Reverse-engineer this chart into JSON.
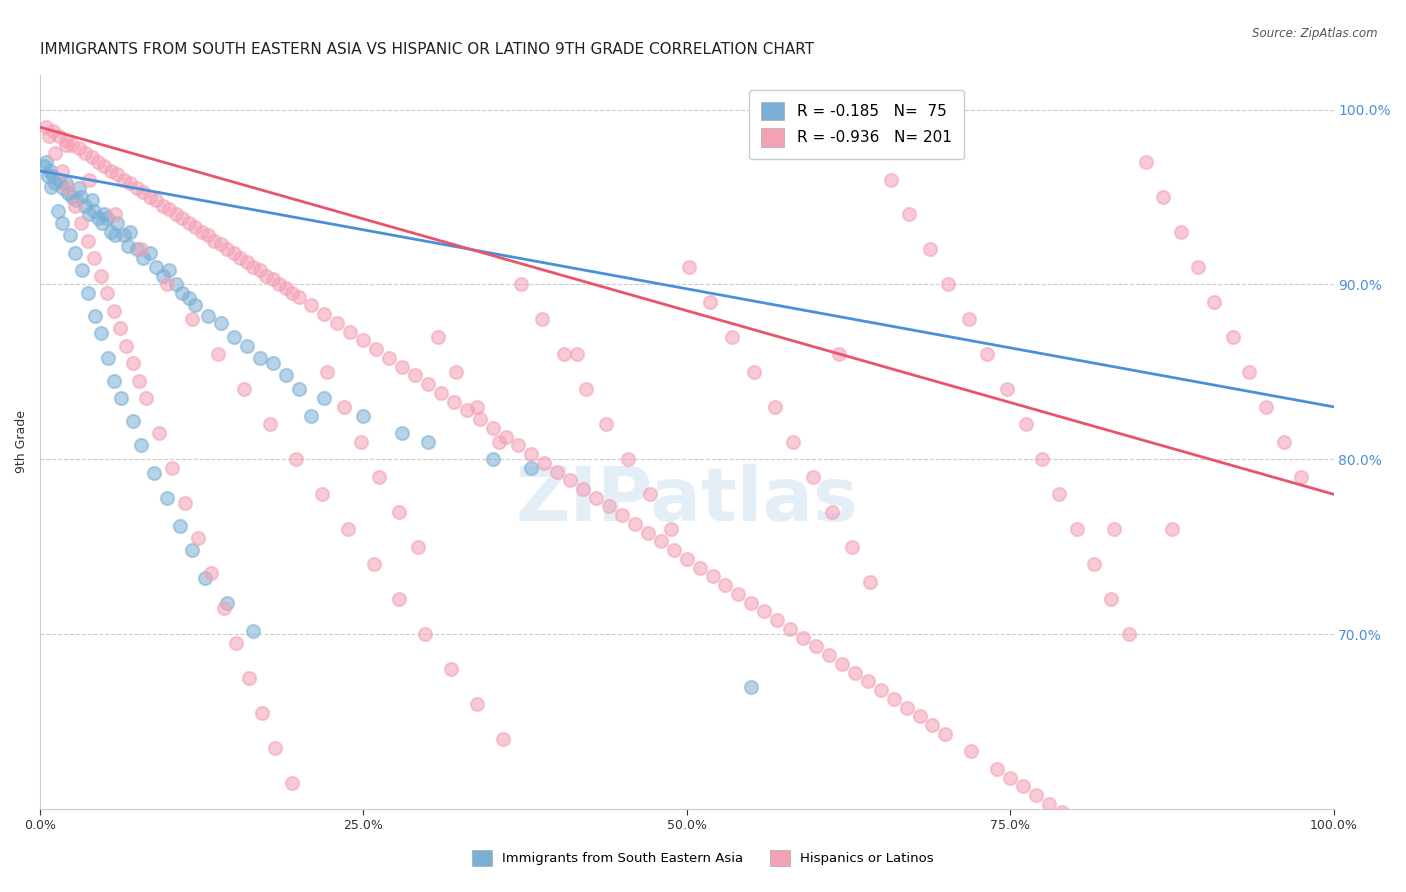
{
  "title": "IMMIGRANTS FROM SOUTH EASTERN ASIA VS HISPANIC OR LATINO 9TH GRADE CORRELATION CHART",
  "source": "Source: ZipAtlas.com",
  "ylabel": "9th Grade",
  "ytick_labels": [
    "70.0%",
    "80.0%",
    "90.0%",
    "100.0%"
  ],
  "ytick_positions": [
    0.7,
    0.8,
    0.9,
    1.0
  ],
  "blue_color": "#7bafd4",
  "pink_color": "#f4a0b5",
  "blue_line_color": "#4a90d9",
  "pink_line_color": "#e8546a",
  "watermark": "ZIPatlas",
  "blue_scatter_x": [
    0.005,
    0.008,
    0.01,
    0.012,
    0.015,
    0.018,
    0.02,
    0.022,
    0.025,
    0.028,
    0.03,
    0.032,
    0.035,
    0.038,
    0.04,
    0.042,
    0.045,
    0.048,
    0.05,
    0.052,
    0.055,
    0.058,
    0.06,
    0.065,
    0.068,
    0.07,
    0.075,
    0.08,
    0.085,
    0.09,
    0.095,
    0.1,
    0.105,
    0.11,
    0.115,
    0.12,
    0.13,
    0.14,
    0.15,
    0.16,
    0.17,
    0.18,
    0.19,
    0.2,
    0.22,
    0.25,
    0.28,
    0.3,
    0.35,
    0.38,
    0.003,
    0.006,
    0.009,
    0.014,
    0.017,
    0.023,
    0.027,
    0.033,
    0.037,
    0.043,
    0.047,
    0.053,
    0.057,
    0.063,
    0.072,
    0.078,
    0.088,
    0.098,
    0.108,
    0.118,
    0.128,
    0.145,
    0.165,
    0.21,
    0.55
  ],
  "blue_scatter_y": [
    0.97,
    0.965,
    0.962,
    0.958,
    0.96,
    0.955,
    0.958,
    0.952,
    0.95,
    0.948,
    0.955,
    0.95,
    0.945,
    0.94,
    0.948,
    0.942,
    0.938,
    0.935,
    0.94,
    0.938,
    0.93,
    0.928,
    0.935,
    0.928,
    0.922,
    0.93,
    0.92,
    0.915,
    0.918,
    0.91,
    0.905,
    0.908,
    0.9,
    0.895,
    0.892,
    0.888,
    0.882,
    0.878,
    0.87,
    0.865,
    0.858,
    0.855,
    0.848,
    0.84,
    0.835,
    0.825,
    0.815,
    0.81,
    0.8,
    0.795,
    0.968,
    0.962,
    0.956,
    0.942,
    0.935,
    0.928,
    0.918,
    0.908,
    0.895,
    0.882,
    0.872,
    0.858,
    0.845,
    0.835,
    0.822,
    0.808,
    0.792,
    0.778,
    0.762,
    0.748,
    0.732,
    0.718,
    0.702,
    0.825,
    0.67
  ],
  "pink_scatter_x": [
    0.005,
    0.01,
    0.015,
    0.02,
    0.025,
    0.03,
    0.035,
    0.04,
    0.045,
    0.05,
    0.055,
    0.06,
    0.065,
    0.07,
    0.075,
    0.08,
    0.085,
    0.09,
    0.095,
    0.1,
    0.105,
    0.11,
    0.115,
    0.12,
    0.125,
    0.13,
    0.135,
    0.14,
    0.145,
    0.15,
    0.155,
    0.16,
    0.165,
    0.17,
    0.175,
    0.18,
    0.185,
    0.19,
    0.195,
    0.2,
    0.21,
    0.22,
    0.23,
    0.24,
    0.25,
    0.26,
    0.27,
    0.28,
    0.29,
    0.3,
    0.31,
    0.32,
    0.33,
    0.34,
    0.35,
    0.36,
    0.37,
    0.38,
    0.39,
    0.4,
    0.41,
    0.42,
    0.43,
    0.44,
    0.45,
    0.46,
    0.47,
    0.48,
    0.49,
    0.5,
    0.51,
    0.52,
    0.53,
    0.54,
    0.55,
    0.56,
    0.57,
    0.58,
    0.59,
    0.6,
    0.61,
    0.62,
    0.63,
    0.64,
    0.65,
    0.66,
    0.67,
    0.68,
    0.69,
    0.7,
    0.72,
    0.74,
    0.75,
    0.76,
    0.77,
    0.78,
    0.79,
    0.8,
    0.81,
    0.82,
    0.007,
    0.012,
    0.017,
    0.022,
    0.027,
    0.032,
    0.037,
    0.042,
    0.047,
    0.052,
    0.057,
    0.062,
    0.067,
    0.072,
    0.077,
    0.082,
    0.092,
    0.102,
    0.112,
    0.122,
    0.132,
    0.142,
    0.152,
    0.162,
    0.172,
    0.182,
    0.195,
    0.208,
    0.222,
    0.235,
    0.248,
    0.262,
    0.278,
    0.292,
    0.308,
    0.322,
    0.338,
    0.355,
    0.372,
    0.388,
    0.405,
    0.422,
    0.438,
    0.455,
    0.472,
    0.488,
    0.502,
    0.518,
    0.535,
    0.552,
    0.568,
    0.582,
    0.598,
    0.612,
    0.628,
    0.642,
    0.658,
    0.672,
    0.688,
    0.702,
    0.718,
    0.732,
    0.748,
    0.762,
    0.775,
    0.788,
    0.802,
    0.815,
    0.828,
    0.842,
    0.855,
    0.868,
    0.882,
    0.895,
    0.908,
    0.922,
    0.935,
    0.948,
    0.962,
    0.975,
    0.415,
    0.618,
    0.83,
    0.875,
    0.02,
    0.038,
    0.058,
    0.078,
    0.098,
    0.118,
    0.138,
    0.158,
    0.178,
    0.198,
    0.218,
    0.238,
    0.258,
    0.278,
    0.298,
    0.318,
    0.338,
    0.358
  ],
  "pink_scatter_y": [
    0.99,
    0.988,
    0.985,
    0.982,
    0.98,
    0.978,
    0.975,
    0.973,
    0.97,
    0.968,
    0.965,
    0.963,
    0.96,
    0.958,
    0.955,
    0.953,
    0.95,
    0.948,
    0.945,
    0.943,
    0.94,
    0.938,
    0.935,
    0.933,
    0.93,
    0.928,
    0.925,
    0.923,
    0.92,
    0.918,
    0.915,
    0.913,
    0.91,
    0.908,
    0.905,
    0.903,
    0.9,
    0.898,
    0.895,
    0.893,
    0.888,
    0.883,
    0.878,
    0.873,
    0.868,
    0.863,
    0.858,
    0.853,
    0.848,
    0.843,
    0.838,
    0.833,
    0.828,
    0.823,
    0.818,
    0.813,
    0.808,
    0.803,
    0.798,
    0.793,
    0.788,
    0.783,
    0.778,
    0.773,
    0.768,
    0.763,
    0.758,
    0.753,
    0.748,
    0.743,
    0.738,
    0.733,
    0.728,
    0.723,
    0.718,
    0.713,
    0.708,
    0.703,
    0.698,
    0.693,
    0.688,
    0.683,
    0.678,
    0.673,
    0.668,
    0.663,
    0.658,
    0.653,
    0.648,
    0.643,
    0.633,
    0.623,
    0.618,
    0.613,
    0.608,
    0.603,
    0.598,
    0.593,
    0.588,
    0.583,
    0.985,
    0.975,
    0.965,
    0.955,
    0.945,
    0.935,
    0.925,
    0.915,
    0.905,
    0.895,
    0.885,
    0.875,
    0.865,
    0.855,
    0.845,
    0.835,
    0.815,
    0.795,
    0.775,
    0.755,
    0.735,
    0.715,
    0.695,
    0.675,
    0.655,
    0.635,
    0.615,
    0.595,
    0.85,
    0.83,
    0.81,
    0.79,
    0.77,
    0.75,
    0.87,
    0.85,
    0.83,
    0.81,
    0.9,
    0.88,
    0.86,
    0.84,
    0.82,
    0.8,
    0.78,
    0.76,
    0.91,
    0.89,
    0.87,
    0.85,
    0.83,
    0.81,
    0.79,
    0.77,
    0.75,
    0.73,
    0.96,
    0.94,
    0.92,
    0.9,
    0.88,
    0.86,
    0.84,
    0.82,
    0.8,
    0.78,
    0.76,
    0.74,
    0.72,
    0.7,
    0.97,
    0.95,
    0.93,
    0.91,
    0.89,
    0.87,
    0.85,
    0.83,
    0.81,
    0.79,
    0.86,
    0.86,
    0.76,
    0.76,
    0.98,
    0.96,
    0.94,
    0.92,
    0.9,
    0.88,
    0.86,
    0.84,
    0.82,
    0.8,
    0.78,
    0.76,
    0.74,
    0.72,
    0.7,
    0.68,
    0.66,
    0.64
  ],
  "xlim": [
    0.0,
    1.0
  ],
  "ylim": [
    0.6,
    1.02
  ],
  "blue_line_x": [
    0.0,
    1.0
  ],
  "blue_line_y": [
    0.965,
    0.83
  ],
  "pink_line_x": [
    0.0,
    1.0
  ],
  "pink_line_y": [
    0.99,
    0.78
  ],
  "grid_color": "#cccccc",
  "background_color": "#ffffff",
  "title_fontsize": 11,
  "axis_label_fontsize": 9,
  "tick_fontsize": 9,
  "legend_fontsize": 11
}
